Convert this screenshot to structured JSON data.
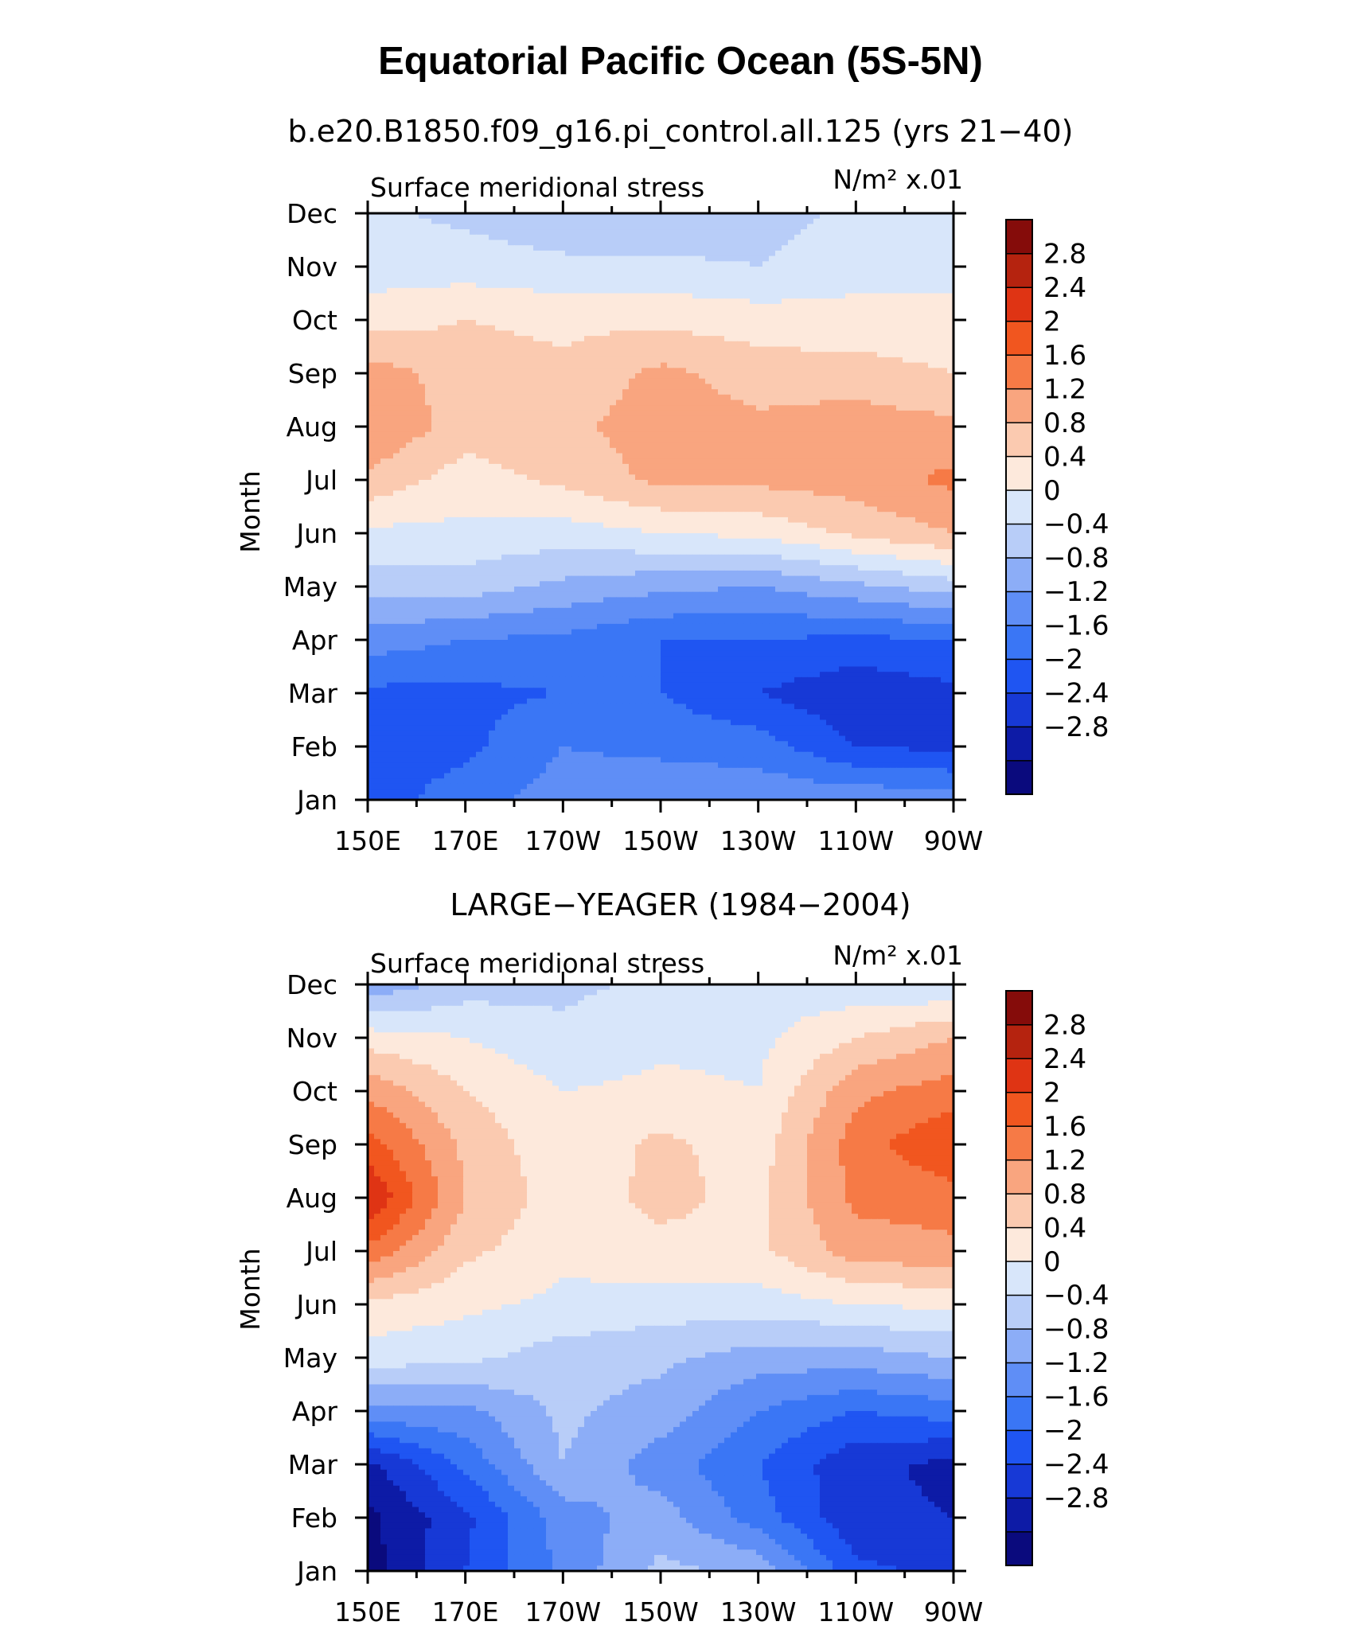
{
  "title": "Equatorial Pacific Ocean (5S-5N)",
  "chart_data": [
    {
      "type": "heatmap",
      "subtitle": "b.e20.B1850.f09_g16.pi_control.all.125 (yrs 21−40)",
      "left_label": "Surface meridional stress",
      "units": "N/m² x.01",
      "ylabel": "Month",
      "x_ticks": [
        "150E",
        "170E",
        "170W",
        "150W",
        "130W",
        "110W",
        "90W"
      ],
      "y_ticks": [
        "Jan",
        "Feb",
        "Mar",
        "Apr",
        "May",
        "Jun",
        "Jul",
        "Aug",
        "Sep",
        "Oct",
        "Nov",
        "Dec"
      ],
      "x": [
        "150E",
        "170E",
        "170W",
        "150W",
        "130W",
        "110W",
        "90W"
      ],
      "y": [
        "Jan",
        "Feb",
        "Mar",
        "Apr",
        "May",
        "Jun",
        "Jul",
        "Aug",
        "Sep",
        "Oct",
        "Nov",
        "Dec"
      ],
      "values": [
        [
          -1.8,
          -1.4,
          -1.0,
          -0.9,
          -0.9,
          -0.9,
          -1.0
        ],
        [
          -1.8,
          -1.7,
          -1.2,
          -1.3,
          -1.4,
          -2.0,
          -2.1
        ],
        [
          -1.7,
          -1.7,
          -1.6,
          -1.6,
          -2.0,
          -2.3,
          -2.1
        ],
        [
          -1.0,
          -1.2,
          -1.3,
          -1.6,
          -1.6,
          -1.7,
          -1.6
        ],
        [
          -0.2,
          -0.2,
          -0.5,
          -0.7,
          -0.8,
          -0.5,
          -0.2
        ],
        [
          0.3,
          0.3,
          0.2,
          0.4,
          0.5,
          0.9,
          1.2
        ],
        [
          1.1,
          0.6,
          0.9,
          1.3,
          1.3,
          1.4,
          1.7
        ],
        [
          1.6,
          1.0,
          1.1,
          1.4,
          1.3,
          1.4,
          1.3
        ],
        [
          1.4,
          1.0,
          0.9,
          1.3,
          1.0,
          1.0,
          0.8
        ],
        [
          0.6,
          0.8,
          0.7,
          0.7,
          0.6,
          0.5,
          0.5
        ],
        [
          0.2,
          0.2,
          0.1,
          0.1,
          0.0,
          0.3,
          0.3
        ],
        [
          0.1,
          -0.1,
          -0.3,
          -0.4,
          -0.2,
          0.1,
          0.1
        ]
      ],
      "colorbar_labels": [
        "2.8",
        "2.4",
        "2",
        "1.6",
        "1.2",
        "0.8",
        "0.4",
        "0",
        "−0.4",
        "−0.8",
        "−1.2",
        "−1.6",
        "−2",
        "−2.4",
        "−2.8"
      ]
    },
    {
      "type": "heatmap",
      "subtitle": "LARGE−YEAGER (1984−2004)",
      "left_label": "Surface meridional stress",
      "units": "N/m² x.01",
      "ylabel": "Month",
      "x_ticks": [
        "150E",
        "170E",
        "170W",
        "150W",
        "130W",
        "110W",
        "90W"
      ],
      "y_ticks": [
        "Jan",
        "Feb",
        "Mar",
        "Apr",
        "May",
        "Jun",
        "Jul",
        "Aug",
        "Sep",
        "Oct",
        "Nov",
        "Dec"
      ],
      "x": [
        "150E",
        "170E",
        "170W",
        "150W",
        "130W",
        "110W",
        "90W"
      ],
      "y": [
        "Jan",
        "Feb",
        "Mar",
        "Apr",
        "May",
        "Jun",
        "Jul",
        "Aug",
        "Sep",
        "Oct",
        "Nov",
        "Dec"
      ],
      "values": [
        [
          -3.0,
          -2.0,
          -1.1,
          -0.3,
          -0.5,
          -1.9,
          -2.1
        ],
        [
          -2.9,
          -2.1,
          -1.0,
          -0.6,
          -1.4,
          -2.3,
          -2.4
        ],
        [
          -2.5,
          -1.5,
          -0.4,
          -1.0,
          -1.6,
          -2.3,
          -2.5
        ],
        [
          -0.9,
          -0.9,
          -0.3,
          -0.6,
          -1.2,
          -1.6,
          -1.4
        ],
        [
          0.2,
          0.1,
          -0.2,
          -0.3,
          -0.6,
          -0.6,
          -0.4
        ],
        [
          0.7,
          0.5,
          0.3,
          0.2,
          0.2,
          0.4,
          0.5
        ],
        [
          1.9,
          0.9,
          0.5,
          0.7,
          0.7,
          1.4,
          1.5
        ],
        [
          2.8,
          1.2,
          0.6,
          0.9,
          0.7,
          1.7,
          1.8
        ],
        [
          2.2,
          1.1,
          0.5,
          0.9,
          0.6,
          1.8,
          2.4
        ],
        [
          1.5,
          0.8,
          0.4,
          0.5,
          0.4,
          1.5,
          1.8
        ],
        [
          0.6,
          0.4,
          0.1,
          0.3,
          0.3,
          0.8,
          1.2
        ],
        [
          -0.7,
          -0.2,
          -0.1,
          0.1,
          0.2,
          0.1,
          0.0
        ]
      ],
      "colorbar_labels": [
        "2.8",
        "2.4",
        "2",
        "1.6",
        "1.2",
        "0.8",
        "0.4",
        "0",
        "−0.4",
        "−0.8",
        "−1.2",
        "−1.6",
        "−2",
        "−2.4",
        "−2.8"
      ]
    }
  ],
  "colors": [
    "#0a0a7d",
    "#0d1ba6",
    "#1739d6",
    "#1f55f2",
    "#3a76f5",
    "#5f8ef6",
    "#8cadf7",
    "#b8cdf8",
    "#d8e6fa",
    "#fde9dc",
    "#fbcab0",
    "#f9a57f",
    "#f67a46",
    "#f1561f",
    "#df3414",
    "#b5230f",
    "#850c0a"
  ]
}
